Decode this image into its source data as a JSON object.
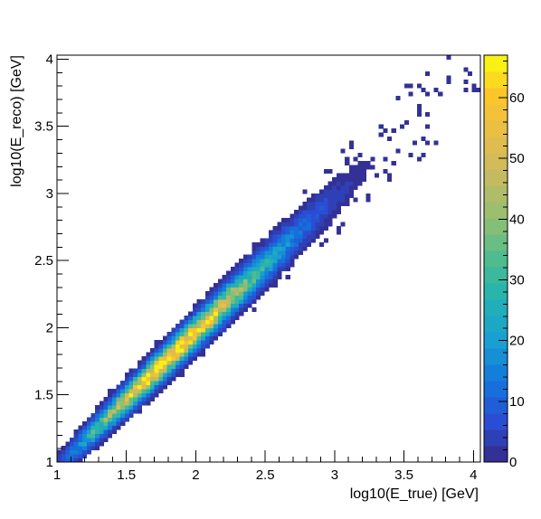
{
  "chart_data": {
    "type": "heatmap",
    "title": "",
    "xlabel": "log10(E_true) [GeV]",
    "ylabel": "log10(E_reco) [GeV]",
    "xlim": [
      1,
      4.05
    ],
    "ylim": [
      1,
      4.03
    ],
    "x_ticks": [
      {
        "value": 1,
        "label": "1"
      },
      {
        "value": 1.5,
        "label": "1.5"
      },
      {
        "value": 2,
        "label": "2"
      },
      {
        "value": 2.5,
        "label": "2.5"
      },
      {
        "value": 3,
        "label": "3"
      },
      {
        "value": 3.5,
        "label": "3.5"
      },
      {
        "value": 4,
        "label": "4"
      }
    ],
    "y_ticks": [
      {
        "value": 1,
        "label": "1"
      },
      {
        "value": 1.5,
        "label": "1.5"
      },
      {
        "value": 2,
        "label": "2"
      },
      {
        "value": 2.5,
        "label": "2.5"
      },
      {
        "value": 3,
        "label": "3"
      },
      {
        "value": 3.5,
        "label": "3.5"
      },
      {
        "value": 4,
        "label": "4"
      }
    ],
    "z_range": [
      0,
      67
    ],
    "z_ticks": [
      {
        "value": 0,
        "label": "0"
      },
      {
        "value": 10,
        "label": "10"
      },
      {
        "value": 20,
        "label": "20"
      },
      {
        "value": 30,
        "label": "30"
      },
      {
        "value": 40,
        "label": "40"
      },
      {
        "value": 50,
        "label": "50"
      },
      {
        "value": 60,
        "label": "60"
      }
    ],
    "bins": {
      "nx": 100,
      "ny": 100,
      "bin_width_x": 0.0305,
      "bin_width_y": 0.0303
    },
    "distribution": {
      "ridge": "y = x",
      "sigma_perpendicular": [
        0.055,
        0.11
      ],
      "peak_count": 66,
      "peak_x_range": [
        1.5,
        2.1
      ],
      "counts_fall_with_x": true
    },
    "color_stops": [
      "#352a87",
      "#2a4ed3",
      "#1177dc",
      "#199fd1",
      "#20b2b4",
      "#4ebc8e",
      "#93bf72",
      "#c4ba62",
      "#e6bd4a",
      "#fbc52c",
      "#f9fb0e"
    ]
  }
}
